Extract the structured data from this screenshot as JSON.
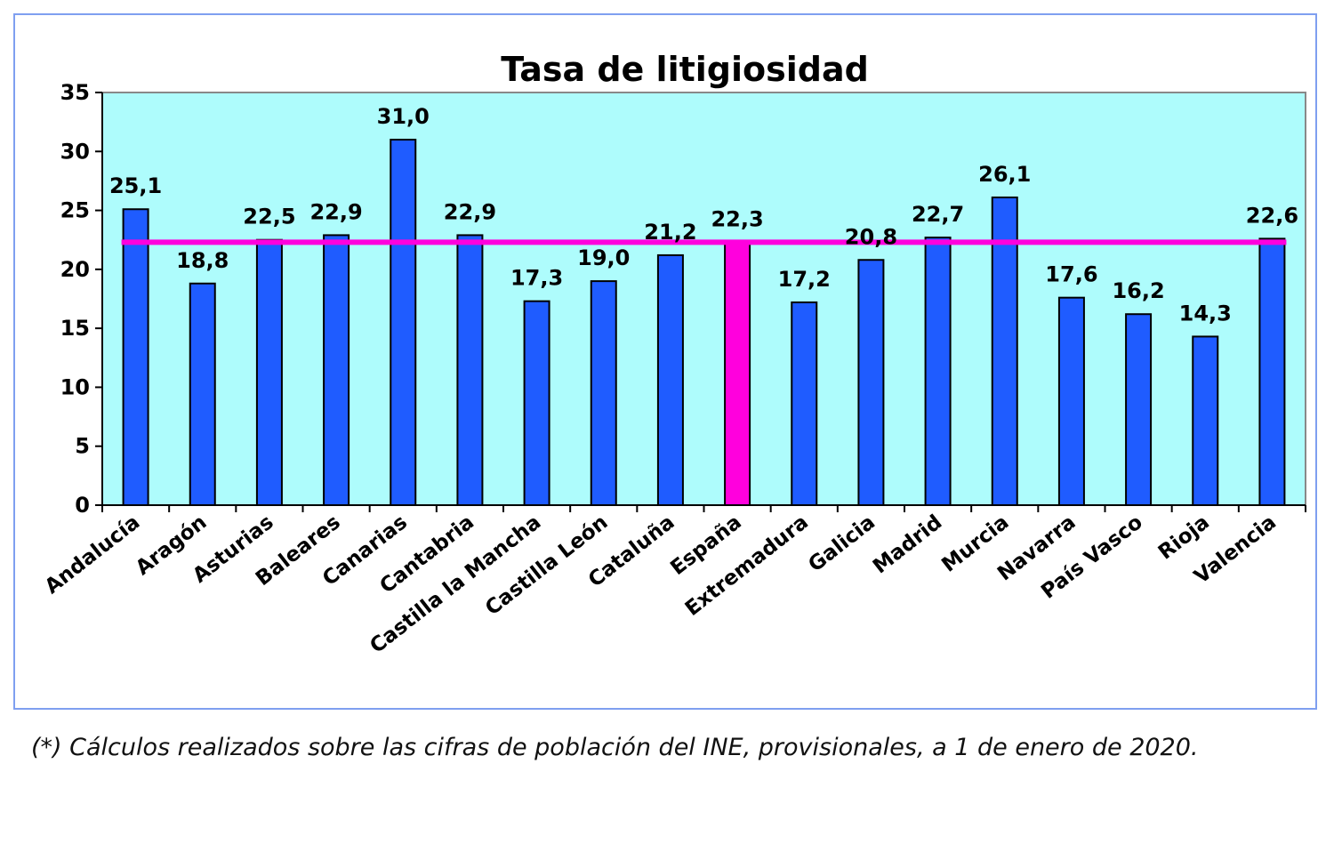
{
  "chart_data": {
    "type": "bar",
    "title": "Tasa de litigiosidad",
    "xlabel": "",
    "ylabel": "",
    "ylim": [
      0,
      35
    ],
    "yticks": [
      "0",
      "5",
      "10",
      "15",
      "20",
      "25",
      "30",
      "35"
    ],
    "categories": [
      "Andalucía",
      "Aragón",
      "Asturias",
      "Baleares",
      "Canarias",
      "Cantabria",
      "Castilla la Mancha",
      "Castilla León",
      "Cataluña",
      "España",
      "Extremadura",
      "Galicia",
      "Madrid",
      "Murcia",
      "Navarra",
      "País Vasco",
      "Rioja",
      "Valencia"
    ],
    "values": [
      25.1,
      18.8,
      22.5,
      22.9,
      31.0,
      22.9,
      17.3,
      19.0,
      21.2,
      22.3,
      17.2,
      20.8,
      22.7,
      26.1,
      17.6,
      16.2,
      14.3,
      22.6
    ],
    "value_labels": [
      "25,1",
      "18,8",
      "22,5",
      "22,9",
      "31,0",
      "22,9",
      "17,3",
      "19,0",
      "21,2",
      "22,3",
      "17,2",
      "20,8",
      "22,7",
      "26,1",
      "17,6",
      "16,2",
      "14,3",
      "22,6"
    ],
    "highlight_category": "España",
    "reference_line": 22.3,
    "colors": {
      "bar": "#1f5cff",
      "highlight": "#ff00dd",
      "reference_line": "#ff00dd",
      "plot_background": "#aefcfc",
      "frame_border": "#7f9ff0"
    },
    "grid": false,
    "legend": "none"
  },
  "footnote": "(*) Cálculos realizados sobre las cifras de población del INE, provisionales, a 1 de enero de 2020."
}
